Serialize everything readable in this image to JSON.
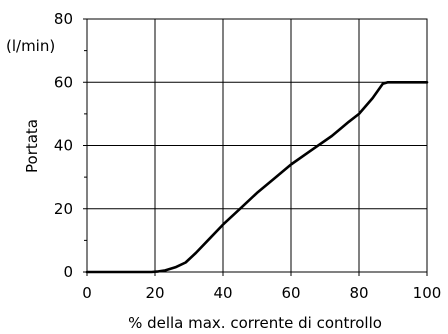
{
  "chart_data": {
    "type": "line",
    "title": "",
    "xlabel": "% della max. corrente di controllo",
    "ylabel": "Portata",
    "y_unit": "(l/min)",
    "xlim": [
      0,
      100
    ],
    "ylim": [
      0,
      80
    ],
    "x_ticks": [
      0,
      20,
      40,
      60,
      80,
      100
    ],
    "y_ticks": [
      0,
      20,
      40,
      60,
      80
    ],
    "grid": true,
    "legend": "none",
    "line_color": "#000000",
    "series": [
      {
        "points": [
          [
            0,
            0
          ],
          [
            19,
            0
          ],
          [
            21,
            0.2
          ],
          [
            23,
            0.5
          ],
          [
            26,
            1.5
          ],
          [
            29,
            3
          ],
          [
            32,
            6
          ],
          [
            36,
            10.5
          ],
          [
            40,
            15
          ],
          [
            45,
            20
          ],
          [
            50,
            25
          ],
          [
            55,
            29.5
          ],
          [
            60,
            34
          ],
          [
            66,
            38.5
          ],
          [
            72,
            43
          ],
          [
            77,
            47.5
          ],
          [
            80,
            50
          ],
          [
            84,
            55
          ],
          [
            87,
            59.5
          ],
          [
            88.5,
            60
          ],
          [
            100,
            60
          ]
        ]
      }
    ]
  }
}
